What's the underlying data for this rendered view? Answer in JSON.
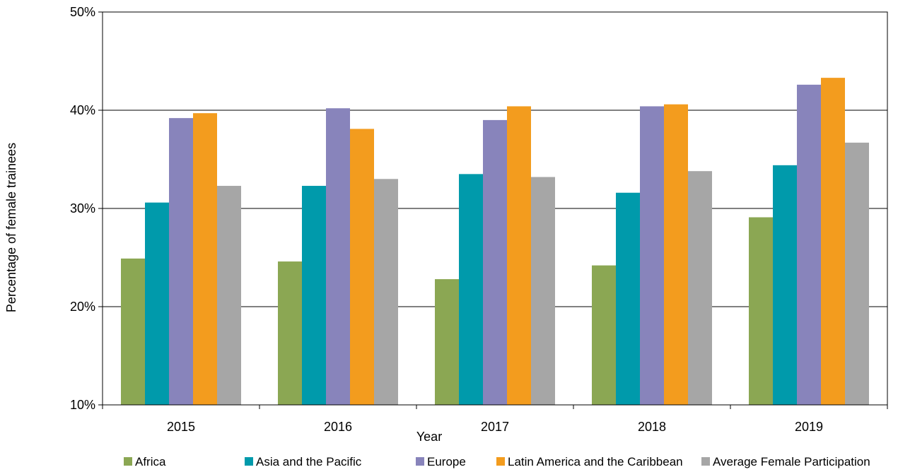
{
  "chart_data": {
    "type": "bar",
    "title": "",
    "xlabel": "Year",
    "ylabel": "Percentage of female trainees",
    "ylim": [
      10,
      50
    ],
    "yticks": [
      "10%",
      "20%",
      "30%",
      "40%",
      "50%"
    ],
    "ytick_values": [
      10,
      20,
      30,
      40,
      50
    ],
    "grid": true,
    "legend_position": "bottom",
    "categories": [
      "2015",
      "2016",
      "2017",
      "2018",
      "2019"
    ],
    "series": [
      {
        "name": "Africa",
        "color": "#8BA753",
        "values": [
          24.9,
          24.6,
          22.8,
          24.2,
          29.1
        ]
      },
      {
        "name": "Asia and the Pacific",
        "color": "#009AAB",
        "values": [
          30.6,
          32.3,
          33.5,
          31.6,
          34.4
        ]
      },
      {
        "name": "Europe",
        "color": "#8884BB",
        "values": [
          39.2,
          40.2,
          39.0,
          40.4,
          42.6
        ]
      },
      {
        "name": "Latin America and the Caribbean",
        "color": "#F39C1E",
        "values": [
          39.7,
          38.1,
          40.4,
          40.6,
          43.3
        ]
      },
      {
        "name": "Average Female Participation",
        "color": "#A6A6A6",
        "values": [
          32.3,
          33.0,
          33.2,
          33.8,
          36.7
        ]
      }
    ]
  }
}
